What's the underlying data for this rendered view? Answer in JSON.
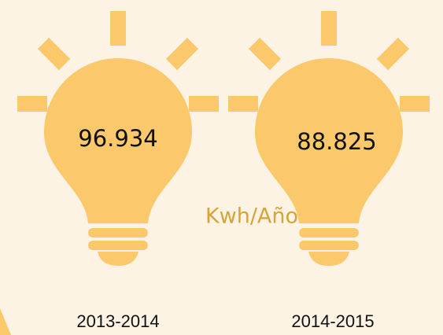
{
  "items": [
    {
      "value": "96.934",
      "period": "2013-2014"
    },
    {
      "value": "88.825",
      "period": "2014-2015"
    }
  ],
  "unit": "Kwh/Año"
}
